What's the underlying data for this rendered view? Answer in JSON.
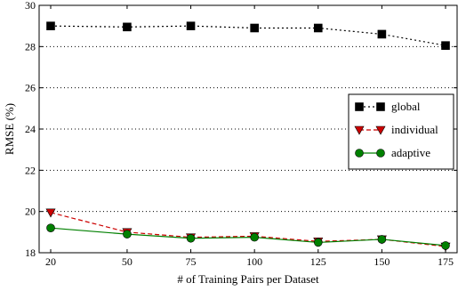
{
  "chart_data": {
    "type": "line",
    "xlabel": "# of Training Pairs per Dataset",
    "ylabel": "RMSE (%)",
    "x": [
      20,
      50,
      75,
      100,
      125,
      150,
      175
    ],
    "xticks": [
      20,
      50,
      75,
      100,
      125,
      150,
      175
    ],
    "ylim": [
      18,
      30
    ],
    "yticks": [
      18,
      20,
      22,
      24,
      26,
      28,
      30
    ],
    "grid": "horizontal dotted",
    "legend_position": "right",
    "series": [
      {
        "name": "global",
        "values": [
          29.0,
          28.95,
          29.0,
          28.9,
          28.9,
          28.6,
          28.05
        ],
        "color": "#000000",
        "marker": "square",
        "line": "dotted"
      },
      {
        "name": "individual",
        "values": [
          19.95,
          19.0,
          18.75,
          18.8,
          18.55,
          18.65,
          18.3
        ],
        "color": "#cc0000",
        "marker": "triangle-down",
        "line": "dashed"
      },
      {
        "name": "adaptive",
        "values": [
          19.2,
          18.9,
          18.7,
          18.75,
          18.5,
          18.65,
          18.35
        ],
        "color": "#008000",
        "marker": "circle",
        "line": "solid"
      }
    ]
  }
}
